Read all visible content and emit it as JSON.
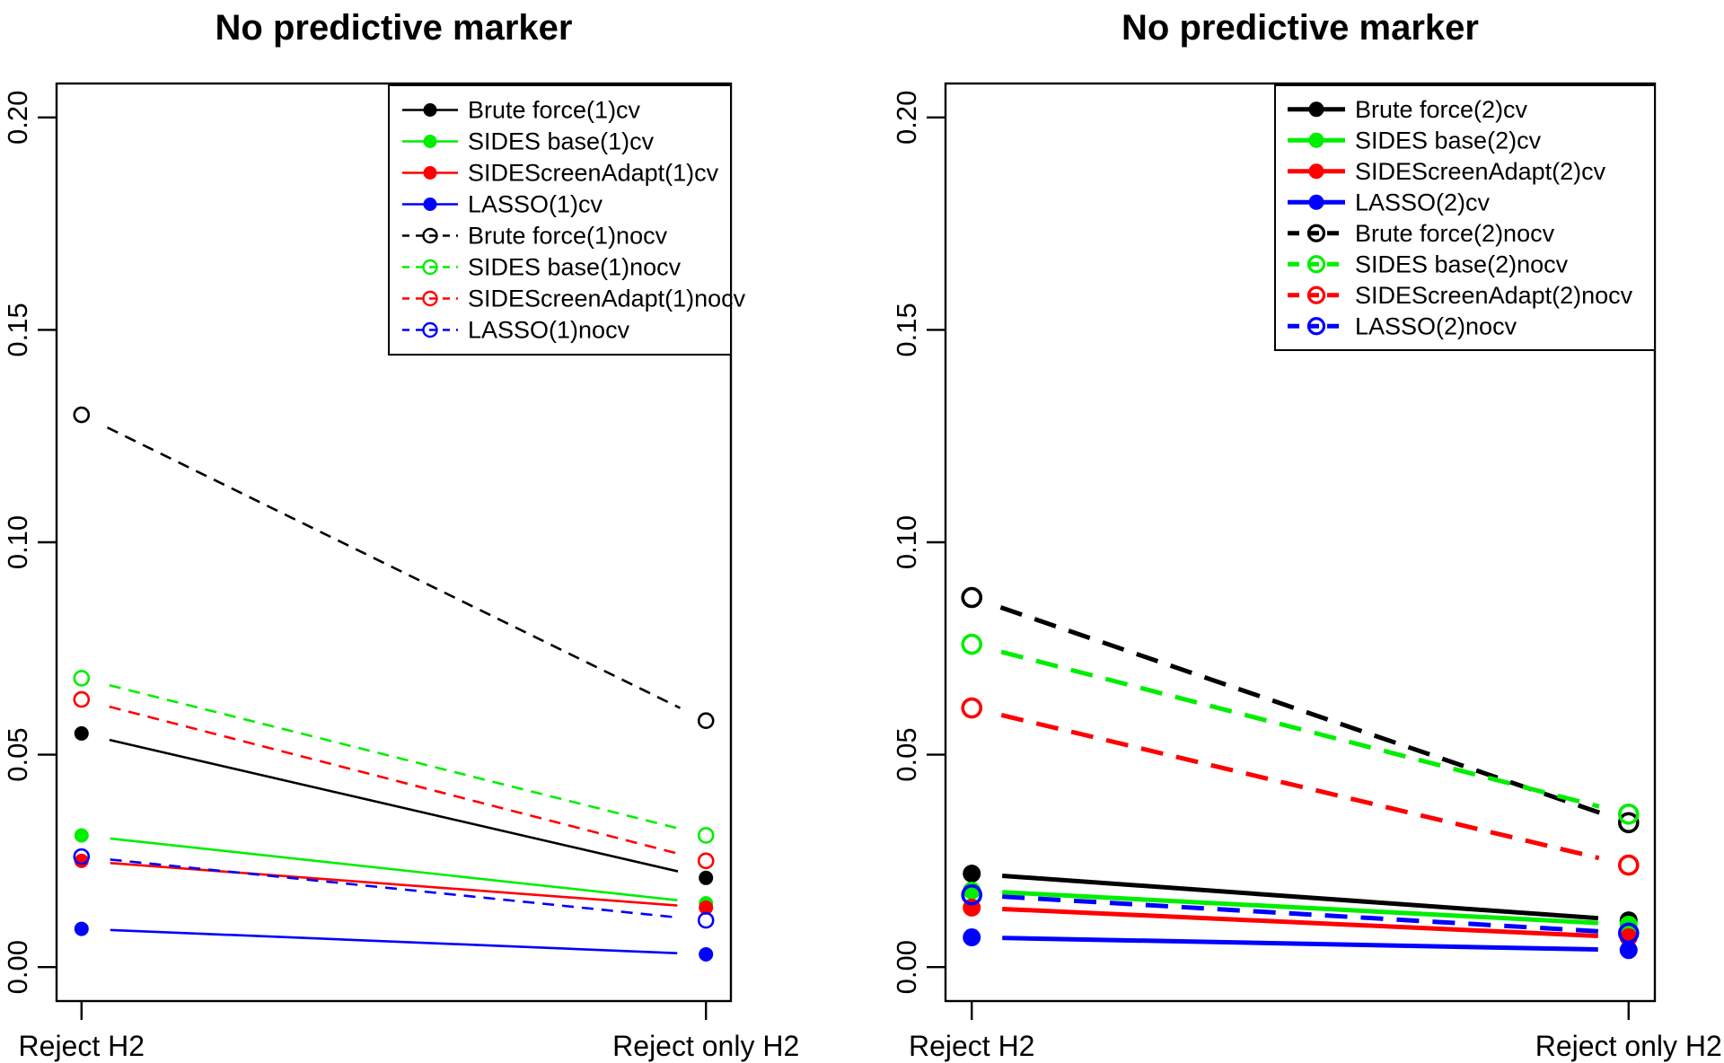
{
  "figure": {
    "background": "#ffffff",
    "text_color": "#000000"
  },
  "colors": {
    "black": "#000000",
    "green": "#00ee00",
    "red": "#ff0000",
    "blue": "#0000ff"
  },
  "chart_data": [
    {
      "type": "line",
      "title": "No predictive marker",
      "categories": [
        "Reject H2",
        "Reject only H2"
      ],
      "xlabel": "",
      "ylabel": "",
      "ylim": [
        -0.008,
        0.208
      ],
      "y_ticks": [
        {
          "value": 0.0,
          "label": "0.00"
        },
        {
          "value": 0.05,
          "label": "0.05"
        },
        {
          "value": 0.1,
          "label": "0.10"
        },
        {
          "value": 0.15,
          "label": "0.15"
        },
        {
          "value": 0.2,
          "label": "0.20"
        }
      ],
      "grid": false,
      "legend_position": "top-right",
      "series": [
        {
          "name": "Brute force(1)cv",
          "color": "#000000",
          "line": "solid",
          "marker": "filled",
          "values": [
            0.055,
            0.021
          ]
        },
        {
          "name": "SIDES base(1)cv",
          "color": "#00ee00",
          "line": "solid",
          "marker": "filled",
          "values": [
            0.031,
            0.015
          ]
        },
        {
          "name": "SIDEScreenAdapt(1)cv",
          "color": "#ff0000",
          "line": "solid",
          "marker": "filled",
          "values": [
            0.025,
            0.014
          ]
        },
        {
          "name": "LASSO(1)cv",
          "color": "#0000ff",
          "line": "solid",
          "marker": "filled",
          "values": [
            0.009,
            0.003
          ]
        },
        {
          "name": "Brute force(1)nocv",
          "color": "#000000",
          "line": "dashed",
          "marker": "open",
          "values": [
            0.13,
            0.058
          ]
        },
        {
          "name": "SIDES base(1)nocv",
          "color": "#00ee00",
          "line": "dashed",
          "marker": "open",
          "values": [
            0.068,
            0.031
          ]
        },
        {
          "name": "SIDEScreenAdapt(1)nocv",
          "color": "#ff0000",
          "line": "dashed",
          "marker": "open",
          "values": [
            0.063,
            0.025
          ]
        },
        {
          "name": "LASSO(1)nocv",
          "color": "#0000ff",
          "line": "dashed",
          "marker": "open",
          "values": [
            0.026,
            0.011
          ]
        }
      ]
    },
    {
      "type": "line",
      "title": "No predictive marker",
      "categories": [
        "Reject H2",
        "Reject only H2"
      ],
      "xlabel": "",
      "ylabel": "",
      "ylim": [
        -0.008,
        0.208
      ],
      "y_ticks": [
        {
          "value": 0.0,
          "label": "0.00"
        },
        {
          "value": 0.05,
          "label": "0.05"
        },
        {
          "value": 0.1,
          "label": "0.10"
        },
        {
          "value": 0.15,
          "label": "0.15"
        },
        {
          "value": 0.2,
          "label": "0.20"
        }
      ],
      "grid": false,
      "legend_position": "top-right",
      "series": [
        {
          "name": "Brute force(2)cv",
          "color": "#000000",
          "line": "solid",
          "marker": "filled",
          "values": [
            0.022,
            0.011
          ]
        },
        {
          "name": "SIDES base(2)cv",
          "color": "#00ee00",
          "line": "solid",
          "marker": "filled",
          "values": [
            0.018,
            0.01
          ]
        },
        {
          "name": "SIDEScreenAdapt(2)cv",
          "color": "#ff0000",
          "line": "solid",
          "marker": "filled",
          "values": [
            0.014,
            0.007
          ]
        },
        {
          "name": "LASSO(2)cv",
          "color": "#0000ff",
          "line": "solid",
          "marker": "filled",
          "values": [
            0.007,
            0.004
          ]
        },
        {
          "name": "Brute force(2)nocv",
          "color": "#000000",
          "line": "dashed",
          "marker": "open",
          "values": [
            0.087,
            0.034
          ]
        },
        {
          "name": "SIDES base(2)nocv",
          "color": "#00ee00",
          "line": "dashed",
          "marker": "open",
          "values": [
            0.076,
            0.036
          ]
        },
        {
          "name": "SIDEScreenAdapt(2)nocv",
          "color": "#ff0000",
          "line": "dashed",
          "marker": "open",
          "values": [
            0.061,
            0.024
          ]
        },
        {
          "name": "LASSO(2)nocv",
          "color": "#0000ff",
          "line": "dashed",
          "marker": "open",
          "values": [
            0.017,
            0.008
          ]
        }
      ]
    }
  ]
}
